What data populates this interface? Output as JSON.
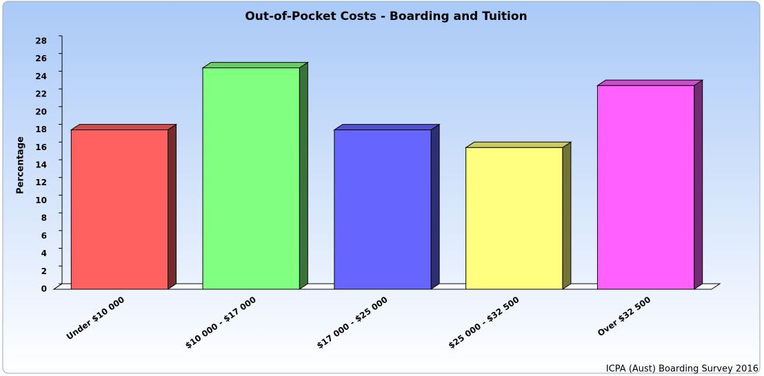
{
  "chart_data": {
    "type": "bar3d",
    "title": "Out-of-Pocket Costs - Boarding and Tuition",
    "y_label": "Percentage",
    "source": "ICPA (Aust) Boarding Survey 2016",
    "categories": [
      "Under $10 000",
      "$10 000 - $17 000",
      "$17 000 - $25 000",
      "$25 000 - $32 500",
      "Over $32 500"
    ],
    "values": [
      18,
      25,
      18,
      16,
      23
    ],
    "colors": [
      "#ff6060",
      "#80ff80",
      "#6666ff",
      "#ffff80",
      "#ff60ff"
    ],
    "ylim": [
      0,
      28
    ],
    "yticks": [
      0,
      2,
      4,
      6,
      8,
      10,
      12,
      14,
      16,
      18,
      20,
      22,
      24,
      26,
      28
    ],
    "grid": false
  }
}
